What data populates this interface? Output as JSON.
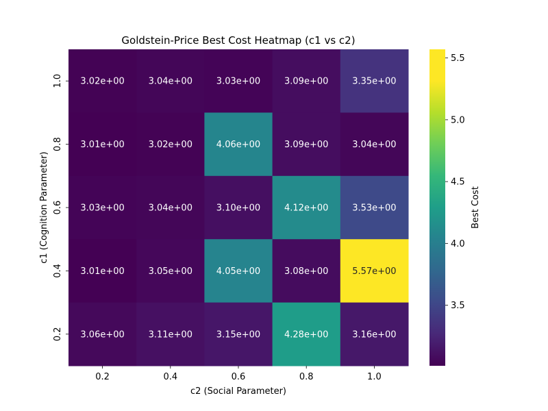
{
  "chart_data": {
    "type": "heatmap",
    "title": "Goldstein-Price Best Cost Heatmap (c1 vs c2)",
    "xlabel": "c2 (Social Parameter)",
    "ylabel": "c1 (Cognition Parameter)",
    "x_categories": [
      "0.2",
      "0.4",
      "0.6",
      "0.8",
      "1.0"
    ],
    "y_categories": [
      "1.0",
      "0.8",
      "0.6",
      "0.4",
      "0.2"
    ],
    "values": [
      [
        3.02,
        3.04,
        3.03,
        3.09,
        3.35
      ],
      [
        3.01,
        3.02,
        4.06,
        3.09,
        3.04
      ],
      [
        3.03,
        3.04,
        3.1,
        4.12,
        3.53
      ],
      [
        3.01,
        3.05,
        4.05,
        3.08,
        5.57
      ],
      [
        3.06,
        3.11,
        3.15,
        4.28,
        3.16
      ]
    ],
    "annotations": [
      [
        "3.02e+00",
        "3.04e+00",
        "3.03e+00",
        "3.09e+00",
        "3.35e+00"
      ],
      [
        "3.01e+00",
        "3.02e+00",
        "4.06e+00",
        "3.09e+00",
        "3.04e+00"
      ],
      [
        "3.03e+00",
        "3.04e+00",
        "3.10e+00",
        "4.12e+00",
        "3.53e+00"
      ],
      [
        "3.01e+00",
        "3.05e+00",
        "4.05e+00",
        "3.08e+00",
        "5.57e+00"
      ],
      [
        "3.06e+00",
        "3.11e+00",
        "3.15e+00",
        "4.28e+00",
        "3.16e+00"
      ]
    ],
    "colormap": "viridis",
    "colorbar": {
      "label": "Best Cost",
      "range": [
        3.01,
        5.57
      ],
      "ticks": [
        "3.5",
        "4.0",
        "4.5",
        "5.0",
        "5.5"
      ],
      "tick_values": [
        3.5,
        4.0,
        4.5,
        5.0,
        5.5
      ]
    },
    "grid": false
  }
}
